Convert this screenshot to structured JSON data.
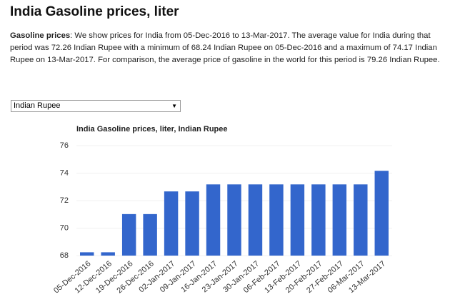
{
  "header": {
    "title": "India Gasoline prices, liter"
  },
  "description": {
    "lead": "Gasoline prices",
    "text": ": We show prices for India from 05-Dec-2016 to 13-Mar-2017. The average value for India during that period was 72.26 Indian Rupee with a minimum of 68.24 Indian Rupee on 05-Dec-2016 and a maximum of 74.17 Indian Rupee on 13-Mar-2017. For comparison, the average price of gasoline in the world for this period is 79.26 Indian Rupee."
  },
  "selector": {
    "value": "Indian Rupee"
  },
  "chart_data": {
    "type": "bar",
    "title": "India Gasoline prices, liter, Indian Rupee",
    "categories": [
      "05-Dec-2016",
      "12-Dec-2016",
      "19-Dec-2016",
      "26-Dec-2016",
      "02-Jan-2017",
      "09-Jan-2017",
      "16-Jan-2017",
      "23-Jan-2017",
      "30-Jan-2017",
      "06-Feb-2017",
      "13-Feb-2017",
      "20-Feb-2017",
      "27-Feb-2017",
      "06-Mar-2017",
      "13-Mar-2017"
    ],
    "values": [
      68.24,
      68.24,
      71.02,
      71.02,
      72.67,
      72.67,
      73.18,
      73.18,
      73.18,
      73.18,
      73.18,
      73.18,
      73.18,
      73.18,
      74.17
    ],
    "color": "#3366cc",
    "ylim": [
      68,
      76
    ],
    "yticks": [
      68,
      70,
      72,
      74,
      76
    ],
    "grid": true
  }
}
